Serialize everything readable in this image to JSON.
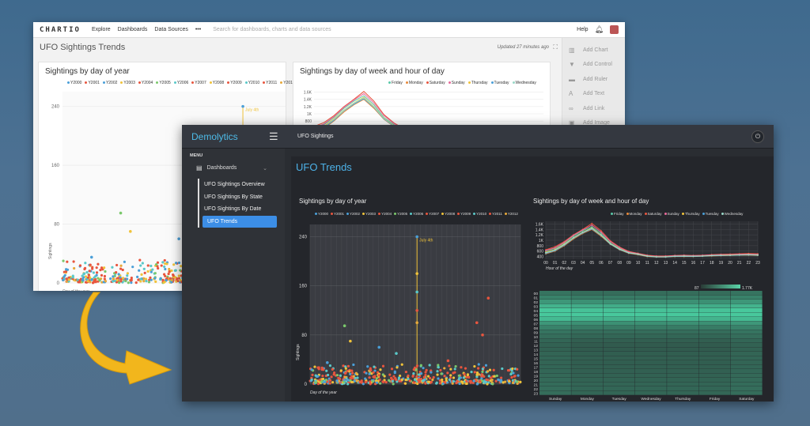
{
  "chartio": {
    "logo": "CHARTIO",
    "nav": [
      "Explore",
      "Dashboards",
      "Data Sources",
      "•••"
    ],
    "search_placeholder": "Search for dashboards, charts and data sources",
    "help": "Help",
    "dashboard_title": "UFO Sightings Trends",
    "updated": "Updated 27 minutes ago",
    "sidebar": [
      "Add Chart",
      "Add Control",
      "Add Ruler",
      "Add Text",
      "Add Link",
      "Add Image"
    ],
    "panel1_title": "Sightings by day of year",
    "panel2_title": "Sightings by day of week and hour of day",
    "scatter_annotation": "July 4th",
    "scatter_ylabel": "Sightings",
    "scatter_xlabel": "Day of the year"
  },
  "demolytics": {
    "logo": "Demolytics",
    "app_title": "UFO Sightings",
    "menu_label": "MENU",
    "dashboards_label": "Dashboards",
    "subnav": [
      "UFO Sightings Overview",
      "UFO Sightings By State",
      "UFO Sightings By Date",
      "UFO Trends"
    ],
    "active_index": 3,
    "page_title": "UFO Trends",
    "panel1_title": "Sightings by day of year",
    "panel2_title": "Sightings by day of week and hour of day",
    "scatter_annotation": "July 4th",
    "scatter_ylabel": "Sightings",
    "scatter_xlabel": "Day of the year",
    "line_xlabel": "Hour of the day",
    "heatmap_min": "87",
    "heatmap_max": "1.77K"
  },
  "chart_data": [
    {
      "type": "scatter",
      "title": "Sightings by day of year",
      "series": [
        {
          "name": "Y2000",
          "color": "#4a9fd8"
        },
        {
          "name": "Y2001",
          "color": "#e8553e"
        },
        {
          "name": "Y2002",
          "color": "#4a9fd8"
        },
        {
          "name": "Y2003",
          "color": "#f0c33a"
        },
        {
          "name": "Y2004",
          "color": "#e8553e"
        },
        {
          "name": "Y2005",
          "color": "#7ac86b"
        },
        {
          "name": "Y2006",
          "color": "#5ac8c8"
        },
        {
          "name": "Y2007",
          "color": "#e8553e"
        },
        {
          "name": "Y2008",
          "color": "#f0c33a"
        },
        {
          "name": "Y2009",
          "color": "#e8553e"
        },
        {
          "name": "Y2010",
          "color": "#5ac8c8"
        },
        {
          "name": "Y2011",
          "color": "#e8553e"
        },
        {
          "name": "Y2012",
          "color": "#e8a93a"
        }
      ],
      "yticks": [
        0,
        80,
        160,
        240
      ],
      "ylim": [
        0,
        260
      ],
      "xlabel": "Day of the year",
      "ylabel": "Sightings",
      "annotation": {
        "label": "July 4th",
        "x": 186
      },
      "outliers": [
        [
          186,
          240
        ],
        [
          186,
          180
        ],
        [
          186,
          150
        ],
        [
          186,
          120
        ],
        [
          186,
          100
        ],
        [
          30,
          35
        ],
        [
          60,
          95
        ],
        [
          70,
          70
        ],
        [
          240,
          38
        ],
        [
          310,
          140
        ],
        [
          290,
          100
        ],
        [
          300,
          80
        ],
        [
          150,
          50
        ],
        [
          120,
          60
        ]
      ]
    },
    {
      "type": "line",
      "title": "Sightings by day of week and hour of day",
      "xlabel": "Hour of the day",
      "categories": [
        "00",
        "01",
        "02",
        "03",
        "04",
        "05",
        "06",
        "07",
        "08",
        "09",
        "10",
        "11",
        "12",
        "13",
        "14",
        "15",
        "16",
        "17",
        "18",
        "19",
        "20",
        "21",
        "22",
        "23"
      ],
      "yticks": [
        "400",
        "600",
        "800",
        "1K",
        "1.2K",
        "1.4K",
        "1.6K"
      ],
      "ylim": [
        300,
        1700
      ],
      "series": [
        {
          "name": "Friday",
          "color": "#5ac8a8",
          "values": [
            600,
            700,
            900,
            1150,
            1350,
            1500,
            1250,
            900,
            700,
            550,
            500,
            420,
            400,
            400,
            420,
            430,
            420,
            430,
            450,
            460,
            460,
            470,
            480,
            470
          ]
        },
        {
          "name": "Monday",
          "color": "#e88a3a",
          "values": [
            500,
            600,
            800,
            1050,
            1250,
            1400,
            1150,
            850,
            650,
            520,
            470,
            400,
            380,
            380,
            400,
            400,
            400,
            410,
            420,
            430,
            440,
            450,
            450,
            440
          ]
        },
        {
          "name": "Saturday",
          "color": "#e8553e",
          "values": [
            650,
            760,
            950,
            1200,
            1400,
            1620,
            1350,
            980,
            750,
            590,
            520,
            450,
            420,
            420,
            440,
            450,
            440,
            450,
            470,
            480,
            490,
            500,
            510,
            500
          ]
        },
        {
          "name": "Sunday",
          "color": "#e86a9a",
          "values": [
            620,
            720,
            920,
            1180,
            1380,
            1560,
            1300,
            950,
            730,
            570,
            510,
            440,
            410,
            410,
            430,
            440,
            430,
            440,
            460,
            470,
            470,
            480,
            490,
            480
          ]
        },
        {
          "name": "Thursday",
          "color": "#f0c33a",
          "values": [
            560,
            660,
            860,
            1100,
            1300,
            1460,
            1200,
            880,
            680,
            540,
            490,
            420,
            390,
            390,
            410,
            420,
            410,
            420,
            440,
            450,
            450,
            460,
            470,
            460
          ]
        },
        {
          "name": "Tuesday",
          "color": "#4a9fd8",
          "values": [
            520,
            620,
            820,
            1080,
            1270,
            1420,
            1180,
            860,
            660,
            530,
            480,
            410,
            385,
            385,
            405,
            410,
            405,
            415,
            430,
            440,
            445,
            455,
            460,
            450
          ]
        },
        {
          "name": "Wednesday",
          "color": "#9ad8c8",
          "values": [
            540,
            640,
            840,
            1090,
            1290,
            1440,
            1190,
            870,
            670,
            535,
            485,
            415,
            388,
            388,
            408,
            415,
            408,
            418,
            435,
            445,
            448,
            458,
            465,
            455
          ]
        }
      ]
    },
    {
      "type": "heatmap",
      "rows": [
        "00",
        "01",
        "02",
        "03",
        "04",
        "05",
        "06",
        "07",
        "08",
        "09",
        "10",
        "11",
        "12",
        "13",
        "14",
        "15",
        "16",
        "17",
        "18",
        "19",
        "20",
        "21",
        "22",
        "23"
      ],
      "columns": [
        "Sunday",
        "Monday",
        "Tuesday",
        "Wednesday",
        "Thursday",
        "Friday",
        "Saturday"
      ],
      "scale_min": "87",
      "scale_max": "1.77K"
    }
  ]
}
